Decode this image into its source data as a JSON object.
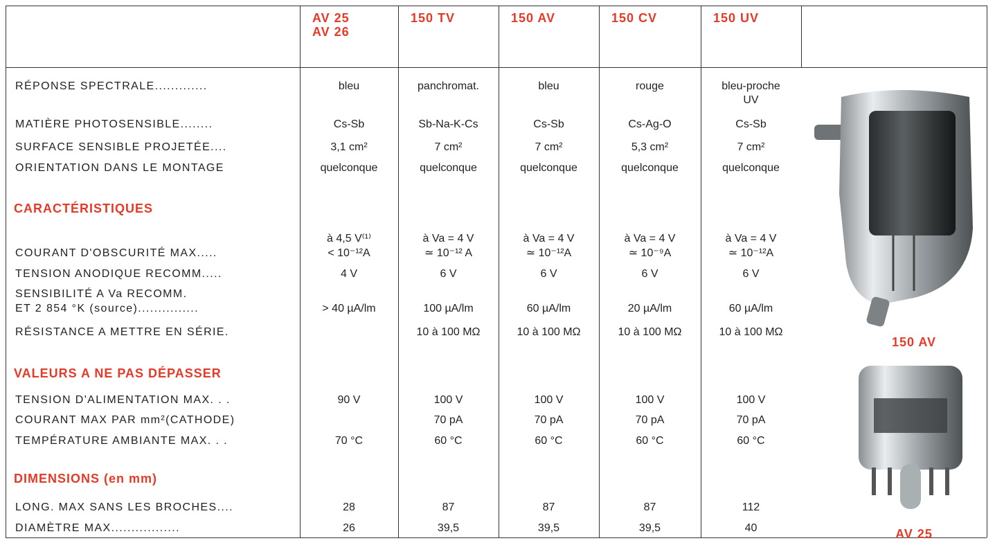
{
  "table": {
    "columns": [
      [
        "AV 25",
        "AV 26"
      ],
      [
        "150 TV"
      ],
      [
        "150 AV"
      ],
      [
        "150 CV"
      ],
      [
        "150 UV"
      ]
    ],
    "rows": [
      {
        "label": "RÉPONSE SPECTRALE.............",
        "cells": [
          "bleu",
          "panchromat.",
          "bleu",
          "rouge",
          [
            "bleu-proche",
            "UV"
          ]
        ]
      },
      {
        "label": "MATIÈRE PHOTOSENSIBLE........",
        "cells": [
          "Cs-Sb",
          "Sb-Na-K-Cs",
          "Cs-Sb",
          "Cs-Ag-O",
          "Cs-Sb"
        ]
      },
      {
        "label": "SURFACE SENSIBLE PROJETÉE....",
        "cells": [
          "3,1 cm²",
          "7 cm²",
          "7 cm²",
          "5,3 cm²",
          "7 cm²"
        ]
      },
      {
        "label": "ORIENTATION DANS LE MONTAGE",
        "cells": [
          "quelconque",
          "quelconque",
          "quelconque",
          "quelconque",
          "quelconque"
        ]
      },
      {
        "heading": "CARACTÉRISTIQUES"
      },
      {
        "label": "COURANT D'OBSCURITÉ MAX.....",
        "cells": [
          [
            "à 4,5 V⁽¹⁾",
            "< 10⁻¹²A"
          ],
          [
            "à Va = 4 V",
            "≃ 10⁻¹² A"
          ],
          [
            "à Va = 4 V",
            "≃ 10⁻¹²A"
          ],
          [
            "à Va = 4 V",
            "≃ 10⁻⁹A"
          ],
          [
            "à Va = 4 V",
            "≃ 10⁻¹²A"
          ]
        ]
      },
      {
        "label": "TENSION ANODIQUE RECOMM.....",
        "cells": [
          "4 V",
          "6 V",
          "6 V",
          "6 V",
          "6 V"
        ]
      },
      {
        "label": [
          "SENSIBILITÉ A Va RECOMM.",
          "ET 2 854 °K (source)..............."
        ],
        "cells": [
          "> 40 µA/lm",
          "100 µA/lm",
          "60 µA/lm",
          "20 µA/lm",
          "60 µA/lm"
        ]
      },
      {
        "label": "RÉSISTANCE A METTRE EN SÉRIE.",
        "cells": [
          null,
          "10 à 100 MΩ",
          "10 à 100 MΩ",
          "10 à 100 MΩ",
          "10 à 100 MΩ"
        ]
      },
      {
        "heading": "VALEURS A NE PAS DÉPASSER"
      },
      {
        "label": "TENSION D'ALIMENTATION MAX. . .",
        "cells": [
          "90 V",
          "100 V",
          "100 V",
          "100 V",
          "100 V"
        ]
      },
      {
        "label": "COURANT MAX PAR mm²(CATHODE)",
        "cells": [
          null,
          "70 pA",
          "70 pA",
          "70 pA",
          "70 pA"
        ]
      },
      {
        "label": "TEMPÉRATURE AMBIANTE MAX. . .",
        "cells": [
          "70 °C",
          "60 °C",
          "60 °C",
          "60 °C",
          "60 °C"
        ]
      },
      {
        "heading": "DIMENSIONS (en mm)"
      },
      {
        "label": "LONG. MAX SANS LES BROCHES....",
        "cells": [
          "28",
          "87",
          "87",
          "87",
          "112"
        ]
      },
      {
        "label": "DIAMÈTRE MAX.................",
        "cells": [
          "26",
          "39,5",
          "39,5",
          "39,5",
          "40"
        ]
      }
    ]
  },
  "figures": [
    {
      "caption": "150 AV"
    },
    {
      "caption": "AV 25"
    }
  ]
}
